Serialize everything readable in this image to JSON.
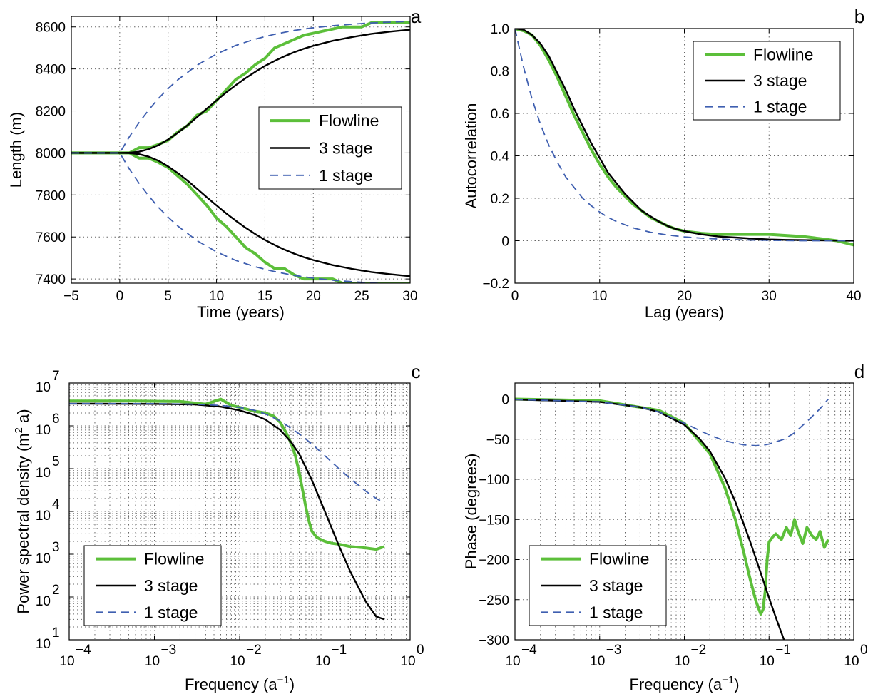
{
  "chart_data": [
    {
      "panel": "a",
      "type": "line",
      "xlabel": "Time (years)",
      "ylabel": "Length (m)",
      "xlim": [
        -5,
        30
      ],
      "ylim": [
        7380,
        8650
      ],
      "xticks": [
        -5,
        0,
        5,
        10,
        15,
        20,
        25,
        30
      ],
      "yticks": [
        7400,
        7600,
        7800,
        8000,
        8200,
        8400,
        8600
      ],
      "grid": true,
      "legend": {
        "placement": "center-right",
        "entries": [
          "Flowline",
          "3 stage",
          "1 stage"
        ]
      },
      "series": [
        {
          "name": "Flowline",
          "style": "solid",
          "color": "#5cbf3a",
          "x": [
            -5,
            0,
            1,
            2,
            3,
            4,
            5,
            6,
            7,
            8,
            9,
            10,
            11,
            12,
            13,
            14,
            15,
            16,
            17,
            18,
            19,
            20,
            21,
            22,
            23,
            24,
            25,
            26,
            27,
            28,
            29,
            30
          ],
          "y": [
            8000,
            8000,
            8000,
            8025,
            8025,
            8040,
            8060,
            8100,
            8130,
            8180,
            8200,
            8250,
            8300,
            8350,
            8380,
            8420,
            8450,
            8500,
            8520,
            8540,
            8560,
            8570,
            8580,
            8590,
            8600,
            8600,
            8600,
            8620,
            8620,
            8620,
            8620,
            8620
          ]
        },
        {
          "name": "Flowline",
          "style": "solid",
          "color": "#5cbf3a",
          "x": [
            -5,
            0,
            1,
            2,
            3,
            4,
            5,
            6,
            7,
            8,
            9,
            10,
            11,
            12,
            13,
            14,
            15,
            16,
            17,
            18,
            19,
            20,
            21,
            22,
            23,
            24,
            25,
            26,
            27,
            28,
            29,
            30
          ],
          "y": [
            8000,
            8000,
            8000,
            7975,
            7975,
            7955,
            7930,
            7890,
            7850,
            7800,
            7750,
            7690,
            7650,
            7600,
            7550,
            7520,
            7480,
            7450,
            7450,
            7420,
            7400,
            7400,
            7400,
            7400,
            7380,
            7380,
            7380,
            7380,
            7380,
            7380,
            7380,
            7380
          ]
        },
        {
          "name": "3 stage",
          "style": "solid",
          "color": "#000000",
          "x": [
            -5,
            0,
            1,
            2,
            3,
            4,
            5,
            6,
            7,
            8,
            9,
            10,
            11,
            12,
            13,
            14,
            15,
            16,
            17,
            18,
            19,
            20,
            22,
            24,
            26,
            28,
            30
          ],
          "y": [
            8000,
            8000,
            8001,
            8006,
            8018,
            8037,
            8064,
            8096,
            8132,
            8171,
            8211,
            8250,
            8288,
            8323,
            8356,
            8386,
            8414,
            8438,
            8460,
            8479,
            8496,
            8510,
            8534,
            8552,
            8567,
            8578,
            8587
          ]
        },
        {
          "name": "3 stage",
          "style": "solid",
          "color": "#000000",
          "x": [
            -5,
            0,
            1,
            2,
            3,
            4,
            5,
            6,
            7,
            8,
            9,
            10,
            11,
            12,
            13,
            14,
            15,
            16,
            17,
            18,
            19,
            20,
            22,
            24,
            26,
            28,
            30
          ],
          "y": [
            8000,
            8000,
            7999,
            7994,
            7982,
            7963,
            7936,
            7904,
            7868,
            7829,
            7789,
            7750,
            7712,
            7677,
            7644,
            7614,
            7586,
            7562,
            7540,
            7521,
            7504,
            7490,
            7466,
            7448,
            7433,
            7422,
            7413
          ]
        },
        {
          "name": "1 stage",
          "style": "dashed",
          "color": "#3f5fb0",
          "x": [
            -5,
            0,
            1,
            2,
            3,
            4,
            5,
            6,
            8,
            10,
            12,
            14,
            16,
            18,
            20,
            22,
            24,
            26,
            28,
            30
          ],
          "y": [
            8000,
            8000,
            8077,
            8145,
            8205,
            8259,
            8306,
            8348,
            8418,
            8471,
            8512,
            8542,
            8565,
            8583,
            8596,
            8606,
            8613,
            8619,
            8623,
            8627
          ]
        },
        {
          "name": "1 stage",
          "style": "dashed",
          "color": "#3f5fb0",
          "x": [
            -5,
            0,
            1,
            2,
            3,
            4,
            5,
            6,
            8,
            10,
            12,
            14,
            16,
            18,
            20,
            22,
            24,
            26,
            28,
            30
          ],
          "y": [
            8000,
            8000,
            7923,
            7855,
            7795,
            7741,
            7694,
            7652,
            7582,
            7529,
            7488,
            7458,
            7435,
            7417,
            7404,
            7394,
            7387,
            7381,
            7377,
            7373
          ]
        }
      ]
    },
    {
      "panel": "b",
      "type": "line",
      "xlabel": "Lag (years)",
      "ylabel": "Autocorrelation",
      "xlim": [
        0,
        40
      ],
      "ylim": [
        -0.2,
        1.0
      ],
      "xticks": [
        0,
        10,
        20,
        30,
        40
      ],
      "yticks": [
        -0.2,
        0,
        0.2,
        0.4,
        0.6,
        0.8,
        1.0
      ],
      "grid": true,
      "legend": {
        "placement": "top-right",
        "entries": [
          "Flowline",
          "3 stage",
          "1 stage"
        ]
      },
      "series": [
        {
          "name": "Flowline",
          "style": "solid",
          "color": "#5cbf3a",
          "x": [
            0,
            1,
            2,
            3,
            4,
            5,
            6,
            7,
            8,
            9,
            10,
            11,
            12,
            13,
            14,
            15,
            16,
            17,
            18,
            19,
            20,
            22,
            24,
            26,
            28,
            30,
            32,
            34,
            36,
            38,
            40
          ],
          "y": [
            1.0,
            0.99,
            0.97,
            0.92,
            0.85,
            0.77,
            0.68,
            0.59,
            0.51,
            0.43,
            0.36,
            0.3,
            0.25,
            0.21,
            0.17,
            0.14,
            0.11,
            0.09,
            0.07,
            0.055,
            0.045,
            0.035,
            0.03,
            0.03,
            0.03,
            0.03,
            0.025,
            0.02,
            0.01,
            0.0,
            -0.02
          ]
        },
        {
          "name": "3 stage",
          "style": "solid",
          "color": "#000000",
          "x": [
            0,
            1,
            2,
            3,
            4,
            5,
            6,
            7,
            8,
            9,
            10,
            11,
            12,
            13,
            14,
            15,
            16,
            17,
            18,
            19,
            20,
            22,
            24,
            26,
            28,
            30,
            32,
            34,
            36,
            38,
            40
          ],
          "y": [
            1.0,
            0.995,
            0.97,
            0.93,
            0.87,
            0.79,
            0.71,
            0.62,
            0.54,
            0.46,
            0.39,
            0.32,
            0.27,
            0.22,
            0.18,
            0.14,
            0.115,
            0.09,
            0.07,
            0.055,
            0.045,
            0.03,
            0.02,
            0.015,
            0.01,
            0.006,
            0.004,
            0.003,
            0.002,
            0.001,
            0.0
          ]
        },
        {
          "name": "1 stage",
          "style": "dashed",
          "color": "#3f5fb0",
          "x": [
            0,
            1,
            2,
            3,
            4,
            5,
            6,
            7,
            8,
            9,
            10,
            11,
            12,
            13,
            14,
            15,
            16,
            18,
            20,
            22,
            24,
            26,
            28,
            30,
            32,
            34,
            36,
            38,
            40
          ],
          "y": [
            1.0,
            0.82,
            0.67,
            0.55,
            0.45,
            0.37,
            0.3,
            0.25,
            0.2,
            0.165,
            0.135,
            0.11,
            0.09,
            0.075,
            0.06,
            0.05,
            0.04,
            0.027,
            0.018,
            0.012,
            0.008,
            0.005,
            0.003,
            0.002,
            0.001,
            0.0,
            0.0,
            0.0,
            0.0
          ]
        }
      ]
    },
    {
      "panel": "c",
      "type": "line",
      "xscale": "log",
      "yscale": "log",
      "xlabel": "Frequency (a",
      "xlabel_sup": "−1",
      "xlabel_end": ")",
      "ylabel": "Power spectral density (m",
      "ylabel_sup": "2",
      "ylabel_end": " a)",
      "xlim": [
        0.0001,
        1
      ],
      "ylim": [
        10,
        10000000
      ],
      "xtick_exponents": [
        "−4",
        "−3",
        "−2",
        "−1",
        "0"
      ],
      "ytick_exponents": [
        "1",
        "2",
        "3",
        "4",
        "5",
        "6",
        "7"
      ],
      "grid": true,
      "legend": {
        "placement": "bottom-left",
        "entries": [
          "Flowline",
          "3 stage",
          "1 stage"
        ]
      },
      "series": [
        {
          "name": "Flowline",
          "style": "solid",
          "color": "#5cbf3a",
          "x": [
            0.0001,
            0.0005,
            0.002,
            0.004,
            0.006,
            0.008,
            0.01,
            0.015,
            0.02,
            0.025,
            0.03,
            0.035,
            0.04,
            0.045,
            0.05,
            0.055,
            0.06,
            0.065,
            0.07,
            0.08,
            0.09,
            0.1,
            0.12,
            0.15,
            0.2,
            0.3,
            0.4,
            0.5
          ],
          "y": [
            3800000,
            3800000,
            3700000,
            3200000,
            4200000,
            3000000,
            2700000,
            2200000,
            2000000,
            1700000,
            1200000,
            700000,
            400000,
            200000,
            80000,
            30000,
            12000,
            6000,
            3500,
            2500,
            2200,
            2000,
            1800,
            1700,
            1500,
            1400,
            1300,
            1500
          ]
        },
        {
          "name": "3 stage",
          "style": "solid",
          "color": "#000000",
          "x": [
            0.0001,
            0.001,
            0.003,
            0.006,
            0.01,
            0.015,
            0.02,
            0.03,
            0.04,
            0.05,
            0.07,
            0.1,
            0.15,
            0.2,
            0.3,
            0.4,
            0.5
          ],
          "y": [
            3300000,
            3250000,
            3150000,
            2800000,
            2300000,
            1800000,
            1400000,
            800000,
            420000,
            220000,
            55000,
            10000,
            1400,
            380,
            80,
            35,
            30
          ]
        },
        {
          "name": "1 stage",
          "style": "dashed",
          "color": "#3f5fb0",
          "x": [
            0.0001,
            0.001,
            0.003,
            0.006,
            0.01,
            0.015,
            0.02,
            0.03,
            0.05,
            0.07,
            0.1,
            0.15,
            0.2,
            0.3,
            0.4,
            0.5
          ],
          "y": [
            3300000,
            3300000,
            3200000,
            3000000,
            2700000,
            2300000,
            1900000,
            1300000,
            650000,
            380000,
            200000,
            95000,
            58000,
            30000,
            20000,
            16000
          ]
        }
      ]
    },
    {
      "panel": "d",
      "type": "line",
      "xscale": "log",
      "xlabel": "Frequency (a",
      "xlabel_sup": "−1",
      "xlabel_end": ")",
      "ylabel": "Phase (degrees)",
      "xlim": [
        0.0001,
        1
      ],
      "ylim": [
        -300,
        20
      ],
      "xtick_exponents": [
        "−4",
        "−3",
        "−2",
        "−1",
        "0"
      ],
      "yticks": [
        -300,
        -250,
        -200,
        -150,
        -100,
        -50,
        0
      ],
      "grid": true,
      "legend": {
        "placement": "bottom-left",
        "entries": [
          "Flowline",
          "3 stage",
          "1 stage"
        ]
      },
      "series": [
        {
          "name": "Flowline",
          "style": "solid",
          "color": "#5cbf3a",
          "x": [
            0.0001,
            0.001,
            0.005,
            0.01,
            0.02,
            0.03,
            0.04,
            0.05,
            0.06,
            0.07,
            0.08,
            0.085,
            0.09,
            0.095,
            0.1,
            0.11,
            0.12,
            0.14,
            0.16,
            0.18,
            0.2,
            0.22,
            0.25,
            0.28,
            0.32,
            0.36,
            0.4,
            0.45,
            0.5
          ],
          "y": [
            0,
            -2,
            -14,
            -30,
            -68,
            -110,
            -150,
            -190,
            -225,
            -252,
            -268,
            -262,
            -240,
            -200,
            -178,
            -172,
            -168,
            -175,
            -160,
            -170,
            -150,
            -165,
            -180,
            -160,
            -170,
            -175,
            -165,
            -185,
            -175
          ]
        },
        {
          "name": "3 stage",
          "style": "solid",
          "color": "#000000",
          "x": [
            0.0001,
            0.001,
            0.003,
            0.005,
            0.01,
            0.015,
            0.02,
            0.03,
            0.04,
            0.05,
            0.06,
            0.08,
            0.1,
            0.12,
            0.15
          ],
          "y": [
            -0.5,
            -3.5,
            -10,
            -16,
            -32,
            -49,
            -65,
            -98,
            -128,
            -155,
            -178,
            -217,
            -248,
            -272,
            -300
          ]
        },
        {
          "name": "1 stage",
          "style": "dashed",
          "color": "#3f5fb0",
          "x": [
            0.0001,
            0.001,
            0.003,
            0.005,
            0.01,
            0.02,
            0.03,
            0.05,
            0.07,
            0.09,
            0.1,
            0.15,
            0.2,
            0.3,
            0.4,
            0.5
          ],
          "y": [
            -0.5,
            -3.5,
            -10,
            -16,
            -30,
            -45,
            -52,
            -57,
            -58,
            -57,
            -56,
            -50,
            -42,
            -25,
            -12,
            0
          ]
        }
      ]
    }
  ]
}
